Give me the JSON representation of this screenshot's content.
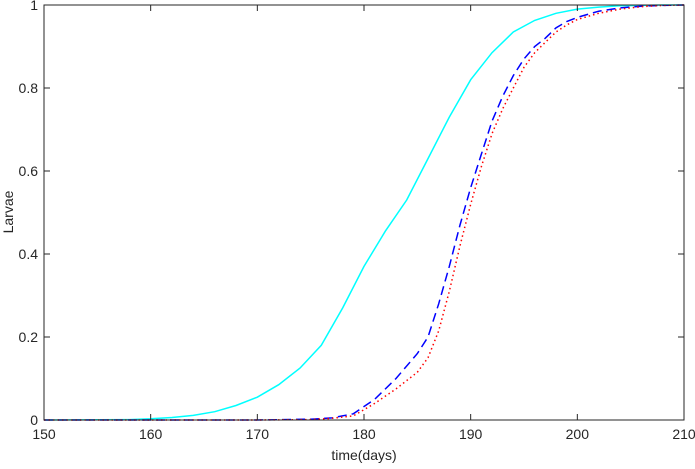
{
  "chart_data": {
    "type": "line",
    "title": "",
    "xlabel": "time(days)",
    "ylabel": "Larvae",
    "xlim": [
      150,
      210
    ],
    "ylim": [
      0,
      1
    ],
    "xticks": [
      150,
      160,
      170,
      180,
      190,
      200,
      210
    ],
    "yticks": [
      0,
      0.2,
      0.4,
      0.6,
      0.8,
      1
    ],
    "ytick_labels": [
      "0",
      "0.2",
      "0.4",
      "0.6",
      "0.8",
      "1"
    ],
    "grid": false,
    "legend": "none",
    "series": [
      {
        "color": "#00ffff",
        "style": "solid",
        "x": [
          150,
          158,
          160,
          162,
          164,
          166,
          168,
          170,
          172,
          174,
          176,
          178,
          180,
          182,
          184,
          186,
          188,
          190,
          192,
          194,
          196,
          198,
          200,
          202,
          204,
          206,
          208,
          210
        ],
        "y": [
          0,
          0.001,
          0.003,
          0.006,
          0.011,
          0.02,
          0.035,
          0.055,
          0.085,
          0.125,
          0.18,
          0.27,
          0.37,
          0.455,
          0.53,
          0.63,
          0.73,
          0.82,
          0.885,
          0.935,
          0.963,
          0.98,
          0.99,
          0.995,
          0.998,
          0.999,
          1.0,
          1.0
        ]
      },
      {
        "color": "#0000ff",
        "style": "dashed",
        "x": [
          150,
          170,
          175,
          177,
          179,
          181,
          183,
          185,
          186,
          187,
          188,
          189,
          190,
          191,
          192,
          193,
          194,
          195,
          196,
          197,
          198,
          199,
          200,
          202,
          204,
          206,
          208,
          210
        ],
        "y": [
          0,
          0,
          0.002,
          0.005,
          0.015,
          0.05,
          0.1,
          0.16,
          0.2,
          0.28,
          0.37,
          0.47,
          0.56,
          0.64,
          0.72,
          0.78,
          0.83,
          0.87,
          0.9,
          0.92,
          0.945,
          0.96,
          0.97,
          0.985,
          0.993,
          0.997,
          0.999,
          1.0
        ]
      },
      {
        "color": "#ff0000",
        "style": "dotted",
        "x": [
          150,
          170,
          175,
          177,
          179,
          181,
          183,
          185,
          186,
          187,
          188,
          189,
          190,
          191,
          192,
          193,
          194,
          195,
          196,
          197,
          198,
          199,
          200,
          202,
          204,
          206,
          208,
          210
        ],
        "y": [
          0,
          0,
          0.001,
          0.004,
          0.01,
          0.04,
          0.075,
          0.115,
          0.15,
          0.215,
          0.31,
          0.42,
          0.52,
          0.61,
          0.69,
          0.75,
          0.8,
          0.85,
          0.885,
          0.91,
          0.935,
          0.952,
          0.965,
          0.98,
          0.99,
          0.996,
          0.999,
          1.0
        ]
      }
    ]
  }
}
